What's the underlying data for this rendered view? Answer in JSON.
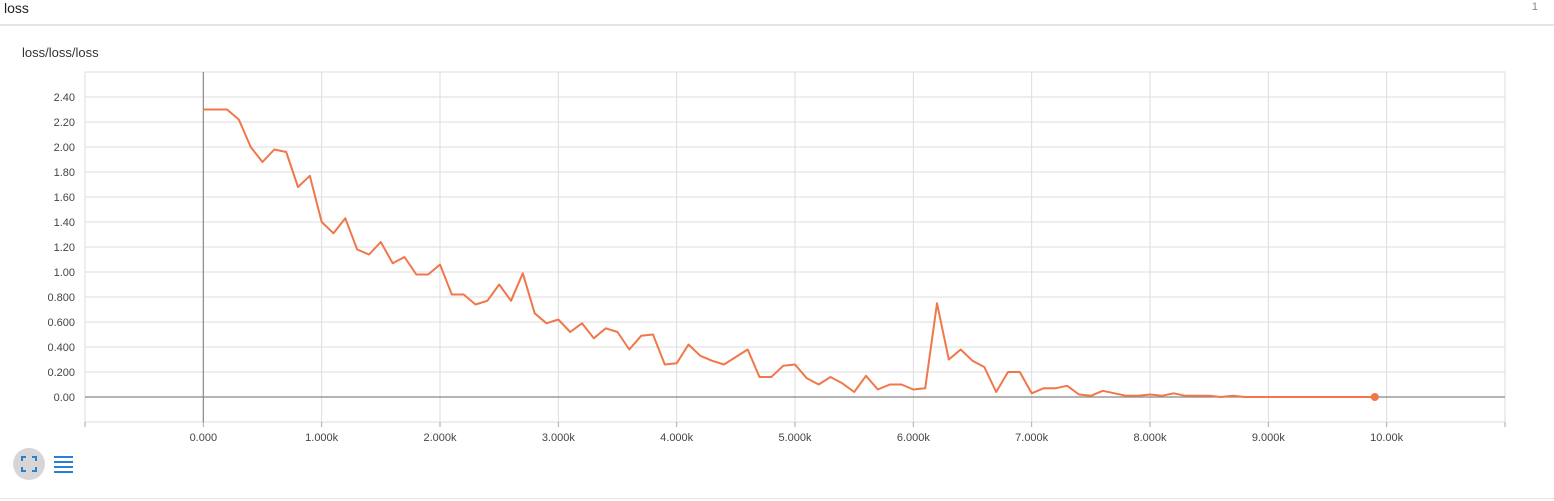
{
  "header": {
    "title": "loss",
    "count": "1"
  },
  "chart_title": "loss/loss/loss",
  "colors": {
    "series": "#f1774a",
    "grid": "#dddddd",
    "axis": "#888888",
    "icon_blue": "#2a7fd4"
  },
  "icons": {
    "expand": "fullscreen-icon",
    "data_table": "list-icon"
  },
  "chart_data": {
    "type": "line",
    "title": "loss/loss/loss",
    "xlabel": "",
    "ylabel": "",
    "xlim": [
      -1000,
      11000
    ],
    "ylim": [
      -0.2,
      2.6
    ],
    "x_ticks": [
      0,
      1000,
      2000,
      3000,
      4000,
      5000,
      6000,
      7000,
      8000,
      9000,
      10000
    ],
    "x_tick_labels": [
      "0.000",
      "1.000k",
      "2.000k",
      "3.000k",
      "4.000k",
      "5.000k",
      "6.000k",
      "7.000k",
      "8.000k",
      "9.000k",
      "10.00k"
    ],
    "y_ticks": [
      0,
      0.2,
      0.4,
      0.6,
      0.8,
      1.0,
      1.2,
      1.4,
      1.6,
      1.8,
      2.0,
      2.2,
      2.4
    ],
    "y_tick_labels": [
      "0.00",
      "0.200",
      "0.400",
      "0.600",
      "0.800",
      "1.00",
      "1.20",
      "1.40",
      "1.60",
      "1.80",
      "2.00",
      "2.20",
      "2.40"
    ],
    "grid": true,
    "series": [
      {
        "x": [
          0,
          100,
          200,
          300,
          400,
          500,
          600,
          700,
          800,
          900,
          1000,
          1100,
          1200,
          1300,
          1400,
          1500,
          1600,
          1700,
          1800,
          1900,
          2000,
          2100,
          2200,
          2300,
          2400,
          2500,
          2600,
          2700,
          2800,
          2900,
          3000,
          3100,
          3200,
          3300,
          3400,
          3500,
          3600,
          3700,
          3800,
          3900,
          4000,
          4100,
          4200,
          4300,
          4400,
          4500,
          4600,
          4700,
          4800,
          4900,
          5000,
          5100,
          5200,
          5300,
          5400,
          5500,
          5600,
          5700,
          5800,
          5900,
          6000,
          6100,
          6200,
          6300,
          6400,
          6500,
          6600,
          6700,
          6800,
          6900,
          7000,
          7100,
          7200,
          7300,
          7400,
          7500,
          7600,
          7700,
          7800,
          7900,
          8000,
          8100,
          8200,
          8300,
          8400,
          8500,
          8600,
          8700,
          8800,
          8900,
          9000,
          9100,
          9200,
          9300,
          9400,
          9500,
          9600,
          9700,
          9800,
          9900
        ],
        "y": [
          2.3,
          2.3,
          2.3,
          2.22,
          2.0,
          1.88,
          1.98,
          1.96,
          1.68,
          1.77,
          1.4,
          1.31,
          1.43,
          1.18,
          1.14,
          1.24,
          1.07,
          1.12,
          0.98,
          0.98,
          1.06,
          0.82,
          0.82,
          0.74,
          0.77,
          0.9,
          0.77,
          0.99,
          0.67,
          0.59,
          0.62,
          0.52,
          0.59,
          0.47,
          0.55,
          0.52,
          0.38,
          0.49,
          0.5,
          0.26,
          0.27,
          0.42,
          0.33,
          0.29,
          0.26,
          0.32,
          0.38,
          0.16,
          0.16,
          0.25,
          0.26,
          0.15,
          0.1,
          0.16,
          0.11,
          0.04,
          0.17,
          0.06,
          0.1,
          0.1,
          0.06,
          0.07,
          0.75,
          0.3,
          0.38,
          0.29,
          0.24,
          0.04,
          0.2,
          0.2,
          0.03,
          0.07,
          0.07,
          0.09,
          0.02,
          0.01,
          0.05,
          0.03,
          0.01,
          0.01,
          0.02,
          0.01,
          0.03,
          0.01,
          0.01,
          0.01,
          0.0,
          0.01,
          0.0,
          0.0,
          0.0,
          0.0,
          0.0,
          0.0,
          0.0,
          0.0,
          0.0,
          0.0,
          0.0,
          0.0
        ]
      }
    ]
  }
}
